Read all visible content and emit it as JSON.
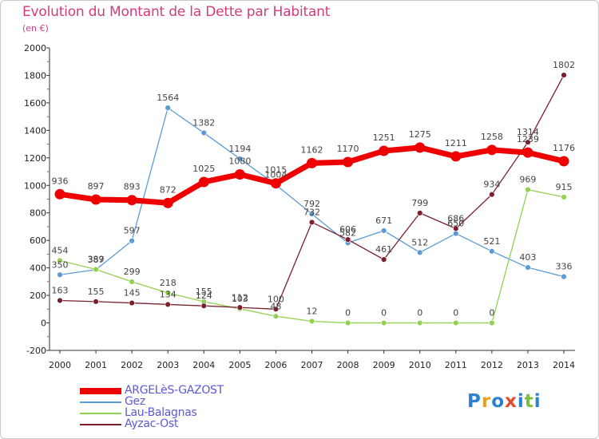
{
  "title": "Evolution du Montant de la Dette par Habitant",
  "subtitle": "(en €)",
  "logo": {
    "text": "Proxiti",
    "letters": [
      {
        "ch": "P",
        "color": "#2d7fcf"
      },
      {
        "ch": "r",
        "color": "#e8a21a"
      },
      {
        "ch": "o",
        "color": "#2d7fcf"
      },
      {
        "ch": "x",
        "color": "#e14b2a"
      },
      {
        "ch": "i",
        "color": "#2d7fcf"
      },
      {
        "ch": "t",
        "color": "#7bbf3c"
      },
      {
        "ch": "i",
        "color": "#2d7fcf"
      }
    ]
  },
  "chart_data": {
    "type": "line",
    "title": "Evolution du Montant de la Dette par Habitant",
    "ylabel": "(en €)",
    "xlabel": "",
    "categories": [
      "2000",
      "2001",
      "2002",
      "2003",
      "2004",
      "2005",
      "2006",
      "2007",
      "2008",
      "2009",
      "2010",
      "2011",
      "2012",
      "2013",
      "2014"
    ],
    "ylim": [
      -200,
      2000
    ],
    "yticks": [
      -200,
      0,
      200,
      400,
      600,
      800,
      1000,
      1200,
      1400,
      1600,
      1800,
      2000
    ],
    "grid": false,
    "legend_position": "bottom-left",
    "series": [
      {
        "name": "ARGELèS-GAZOST",
        "color": "#ee0000",
        "values": [
          936,
          897,
          893,
          872,
          1025,
          1080,
          1015,
          1162,
          1170,
          1251,
          1275,
          1211,
          1258,
          1239,
          1176
        ]
      },
      {
        "name": "Gez",
        "color": "#5b9bd5",
        "values": [
          350,
          387,
          597,
          1564,
          1382,
          1194,
          1004,
          792,
          582,
          671,
          512,
          650,
          521,
          403,
          336
        ]
      },
      {
        "name": "Lau-Balagnas",
        "color": "#92d050",
        "values": [
          454,
          389,
          299,
          218,
          155,
          103,
          48,
          12,
          0,
          0,
          0,
          0,
          0,
          969,
          915
        ]
      },
      {
        "name": "Ayzac-Ost",
        "color": "#7b1f2e",
        "values": [
          163,
          155,
          145,
          134,
          124,
          112,
          100,
          732,
          606,
          461,
          799,
          686,
          934,
          1314,
          1802
        ]
      }
    ]
  }
}
